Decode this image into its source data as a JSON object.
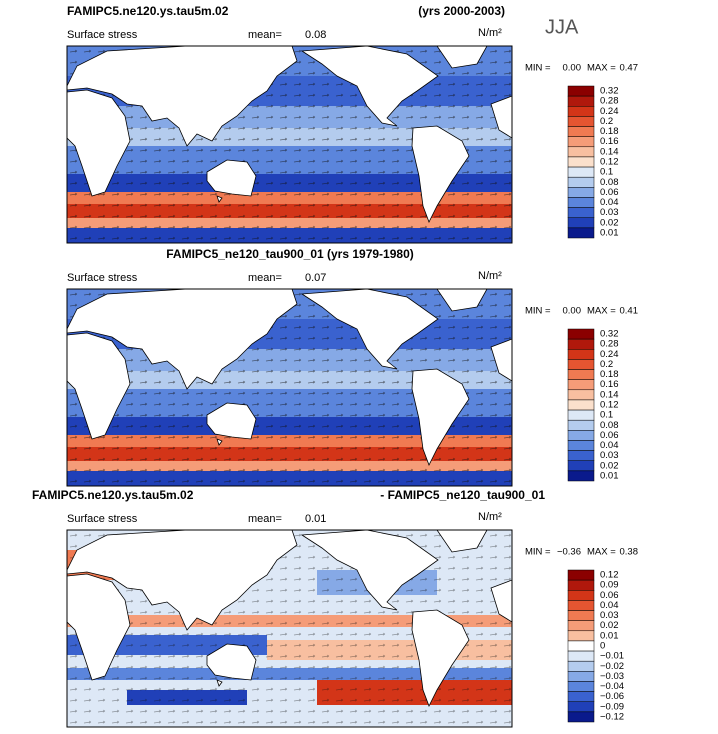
{
  "season": "JJA",
  "panels": [
    {
      "title": {
        "left": "FAMIPC5.ne120.ys.tau5m.02",
        "right": "(yrs 2000-2003)"
      },
      "field": "Surface stress",
      "mean_label": "mean=",
      "mean": "0.08",
      "units": "N/m²",
      "min_label": "MIN =",
      "min": "0.00",
      "max_label": "MAX =",
      "max": "0.47",
      "colorbar": {
        "labels": [
          "0.32",
          "0.28",
          "0.24",
          "0.2",
          "0.18",
          "0.16",
          "0.14",
          "0.12",
          "0.1",
          "0.08",
          "0.06",
          "0.04",
          "0.03",
          "0.02",
          "0.01"
        ],
        "colors": [
          "#8b0000",
          "#b0180c",
          "#d33518",
          "#e55531",
          "#f07a52",
          "#f59c78",
          "#f8bfa0",
          "#fbe0cc",
          "#dde8f6",
          "#b4ccee",
          "#86a9e6",
          "#5b85dc",
          "#3a62cf",
          "#2040b8",
          "#0a1a8c"
        ]
      }
    },
    {
      "title": {
        "center": "FAMIPC5_ne120_tau900_01 (yrs 1979-1980)"
      },
      "field": "Surface stress",
      "mean_label": "mean=",
      "mean": "0.07",
      "units": "N/m²",
      "min_label": "MIN =",
      "min": "0.00",
      "max_label": "MAX =",
      "max": "0.41",
      "colorbar": {
        "labels": [
          "0.32",
          "0.28",
          "0.24",
          "0.2",
          "0.18",
          "0.16",
          "0.14",
          "0.12",
          "0.1",
          "0.08",
          "0.06",
          "0.04",
          "0.03",
          "0.02",
          "0.01"
        ],
        "colors": [
          "#8b0000",
          "#b0180c",
          "#d33518",
          "#e55531",
          "#f07a52",
          "#f59c78",
          "#f8bfa0",
          "#fbe0cc",
          "#dde8f6",
          "#b4ccee",
          "#86a9e6",
          "#5b85dc",
          "#3a62cf",
          "#2040b8",
          "#0a1a8c"
        ]
      }
    },
    {
      "title": {
        "left": "FAMIPC5.ne120.ys.tau5m.02",
        "right": "- FAMIPC5_ne120_tau900_01"
      },
      "field": "Surface stress",
      "mean_label": "mean=",
      "mean": "0.01",
      "units": "N/m²",
      "min_label": "MIN =",
      "min": "−0.36",
      "max_label": "MAX =",
      "max": "0.38",
      "colorbar": {
        "labels": [
          "0.12",
          "0.09",
          "0.06",
          "0.04",
          "0.03",
          "0.02",
          "0.01",
          "0",
          "−0.01",
          "−0.02",
          "−0.03",
          "−0.04",
          "−0.06",
          "−0.09",
          "−0.12"
        ],
        "colors": [
          "#8b0000",
          "#b0180c",
          "#d33518",
          "#e55531",
          "#f07a52",
          "#f59c78",
          "#f8bfa0",
          "#ffffff",
          "#dde8f6",
          "#b4ccee",
          "#86a9e6",
          "#5b85dc",
          "#3a62cf",
          "#2040b8",
          "#0a1a8c"
        ]
      }
    }
  ]
}
